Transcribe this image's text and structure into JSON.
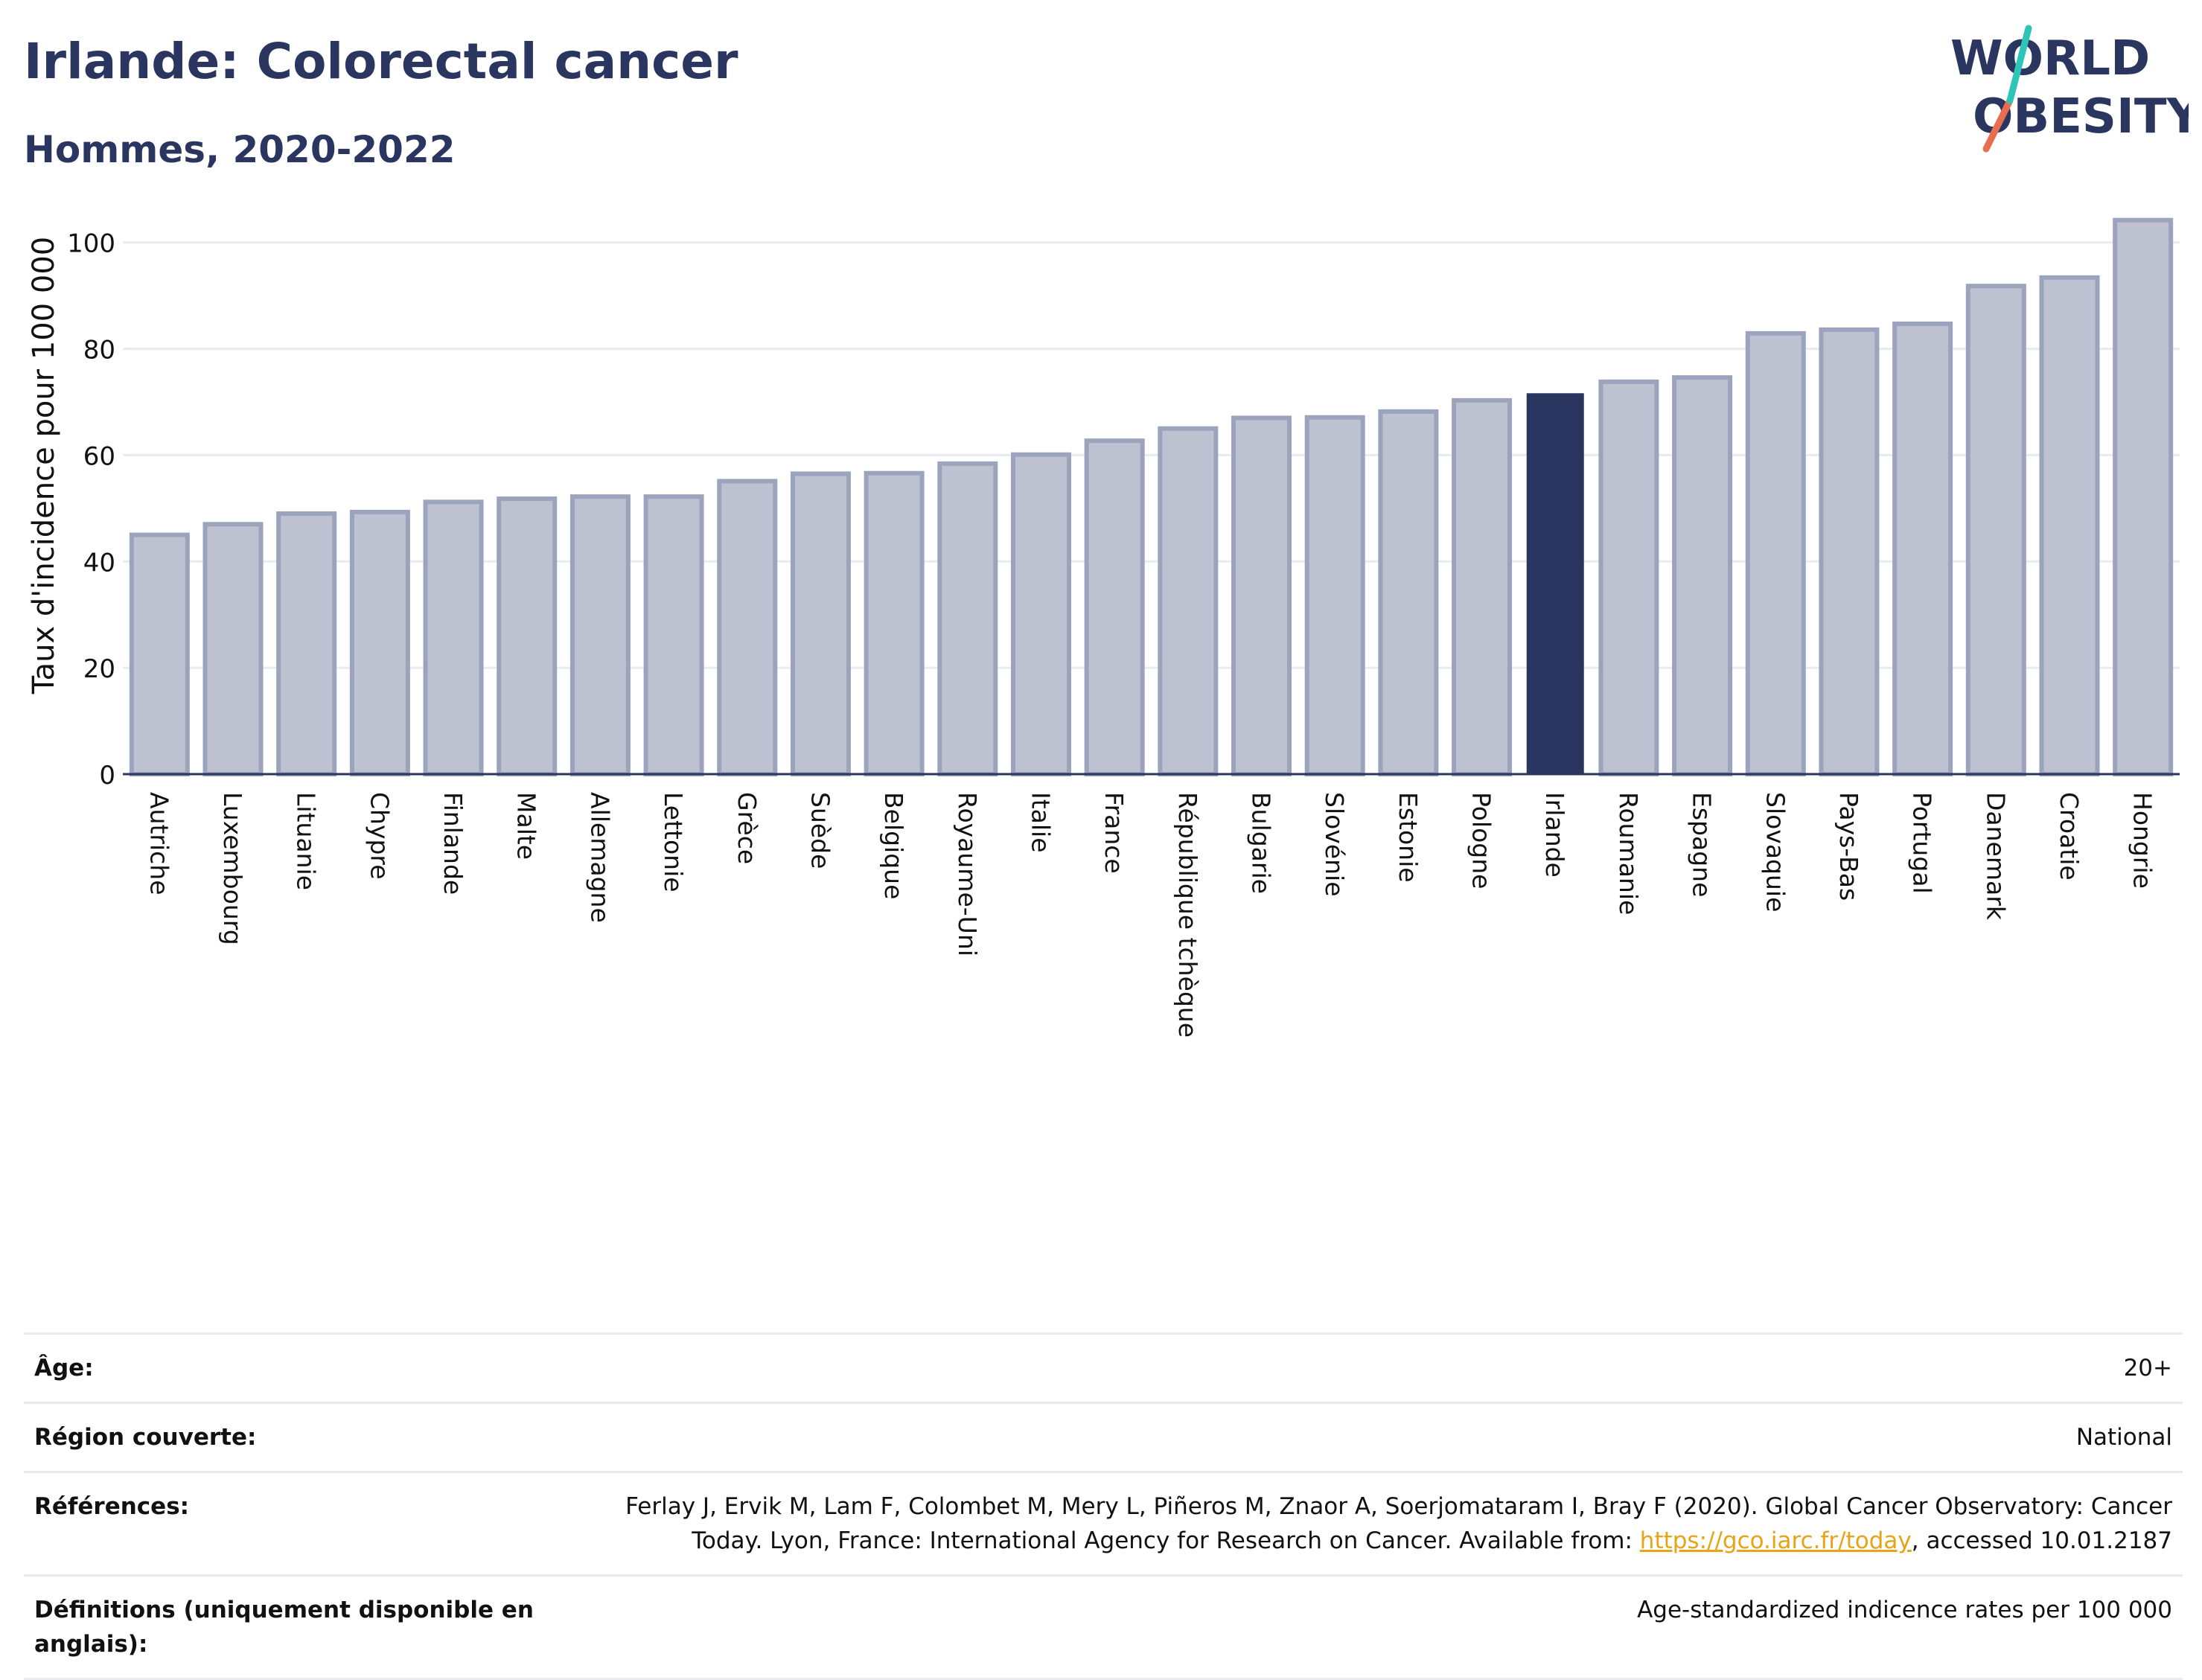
{
  "title": "Irlande: Colorectal cancer",
  "subtitle": "Hommes, 2020-2022",
  "logo": {
    "line1": "WORLD",
    "line2": "OBESITY",
    "accent_colors": [
      "#2ec4b6",
      "#e76f51"
    ]
  },
  "colors": {
    "bar": "#bec2d0",
    "bar_edge": "#9ba3bd",
    "highlight": "#2a3560",
    "grid": "#e8ebf0",
    "axis": "#2a3560"
  },
  "chart_data": {
    "type": "bar",
    "ylabel": "Taux d'incidence pour 100 000",
    "ylim": [
      0,
      105
    ],
    "yticks": [
      0,
      20,
      40,
      60,
      80,
      100
    ],
    "highlight": "Irlande",
    "categories": [
      "Autriche",
      "Luxembourg",
      "Lituanie",
      "Chypre",
      "Finlande",
      "Malte",
      "Allemagne",
      "Lettonie",
      "Grèce",
      "Suède",
      "Belgique",
      "Royaume-Uni",
      "Italie",
      "France",
      "République tchèque",
      "Bulgarie",
      "Slovénie",
      "Estonie",
      "Pologne",
      "Irlande",
      "Roumanie",
      "Espagne",
      "Slovaquie",
      "Pays-Bas",
      "Portugal",
      "Danemark",
      "Croatie",
      "Hongrie"
    ],
    "values": [
      45.0,
      47.0,
      49.0,
      49.3,
      51.2,
      51.8,
      52.2,
      52.2,
      55.1,
      56.5,
      56.6,
      58.4,
      60.1,
      62.7,
      65.0,
      67.0,
      67.1,
      68.2,
      70.3,
      71.5,
      73.8,
      74.6,
      82.9,
      83.6,
      84.7,
      91.8,
      93.4,
      104.2
    ]
  },
  "meta": {
    "age_label": "Âge:",
    "age_value": "20+",
    "region_label": "Région couverte:",
    "region_value": "National",
    "refs_label": "Références:",
    "refs_text_1": "Ferlay J, Ervik M, Lam F, Colombet M, Mery L, Piñeros M, Znaor A, Soerjomataram I, Bray F (2020). Global Cancer Observatory: Cancer",
    "refs_text_2": "Today. Lyon, France: International Agency for Research on Cancer. Available from: ",
    "refs_link": "https://gco.iarc.fr/today",
    "refs_text_3": ", accessed 10.01.2187",
    "def_label": "Définitions (uniquement disponible en anglais):",
    "def_value": "Age-standardized indicence rates per 100 000"
  }
}
